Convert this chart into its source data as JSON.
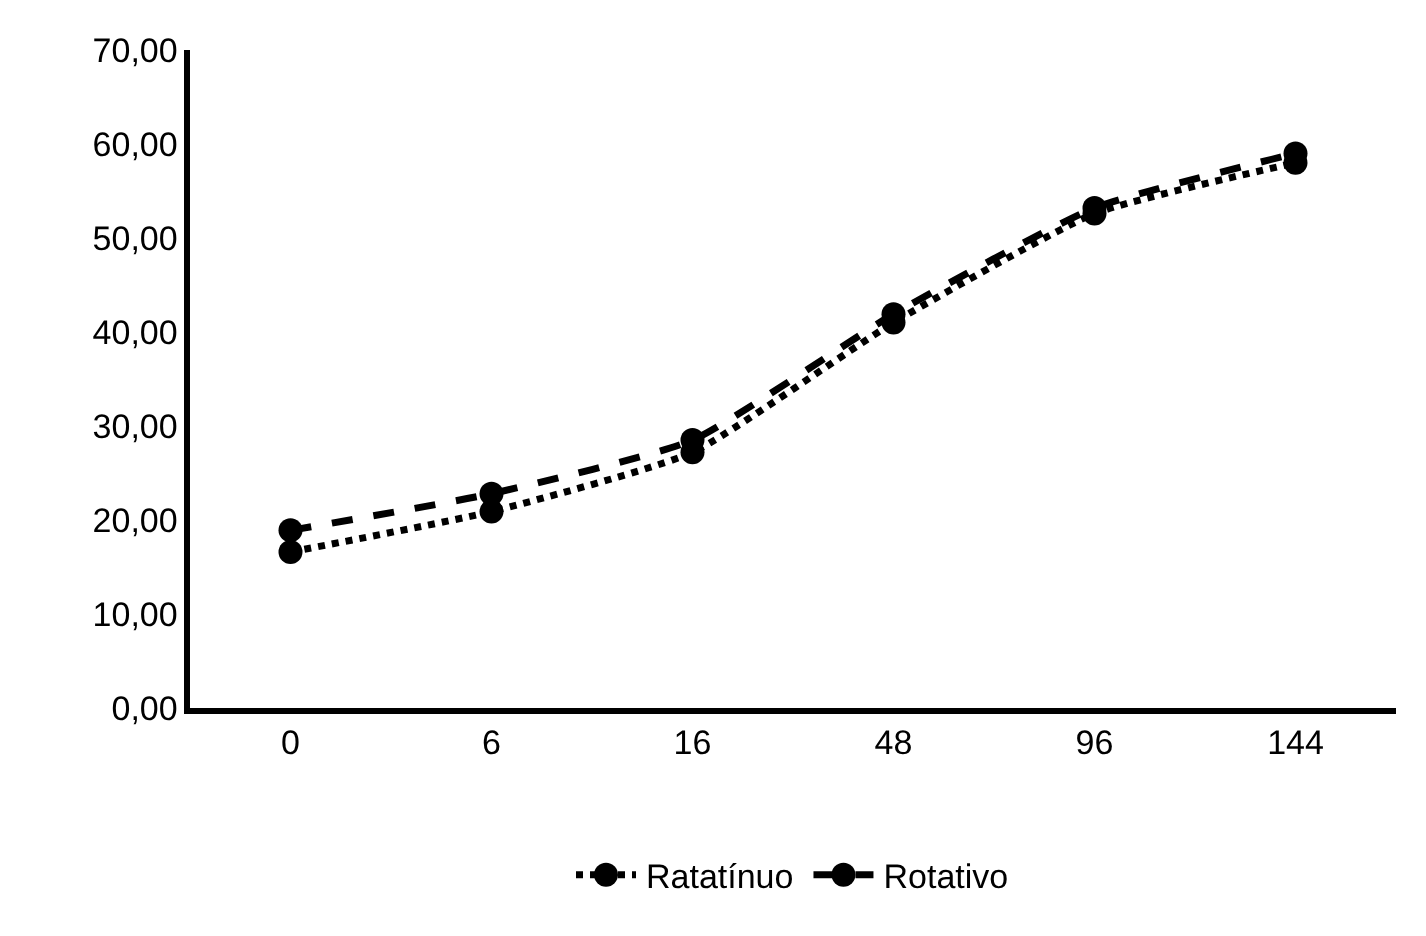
{
  "chart_data": {
    "type": "line",
    "categories": [
      "0",
      "6",
      "16",
      "48",
      "96",
      "144"
    ],
    "series": [
      {
        "name": "Ratatínuo",
        "color": "#000000",
        "values": [
          16.6,
          20.9,
          27.2,
          41.0,
          52.6,
          58.0
        ],
        "line_style": "dotted"
      },
      {
        "name": "Rotativo",
        "color": "#000000",
        "values": [
          18.9,
          22.8,
          28.5,
          41.9,
          53.2,
          59.0
        ],
        "line_style": "dashed"
      }
    ],
    "ylim": [
      0,
      70
    ],
    "yticks": [
      {
        "value": 0,
        "label": "0,00"
      },
      {
        "value": 10,
        "label": "10,00"
      },
      {
        "value": 20,
        "label": "20,00"
      },
      {
        "value": 30,
        "label": "30,00"
      },
      {
        "value": 40,
        "label": "40,00"
      },
      {
        "value": 50,
        "label": "50,00"
      },
      {
        "value": 60,
        "label": "60,00"
      },
      {
        "value": 70,
        "label": "70,00"
      }
    ],
    "marker": "circle",
    "legend": "bottom"
  }
}
